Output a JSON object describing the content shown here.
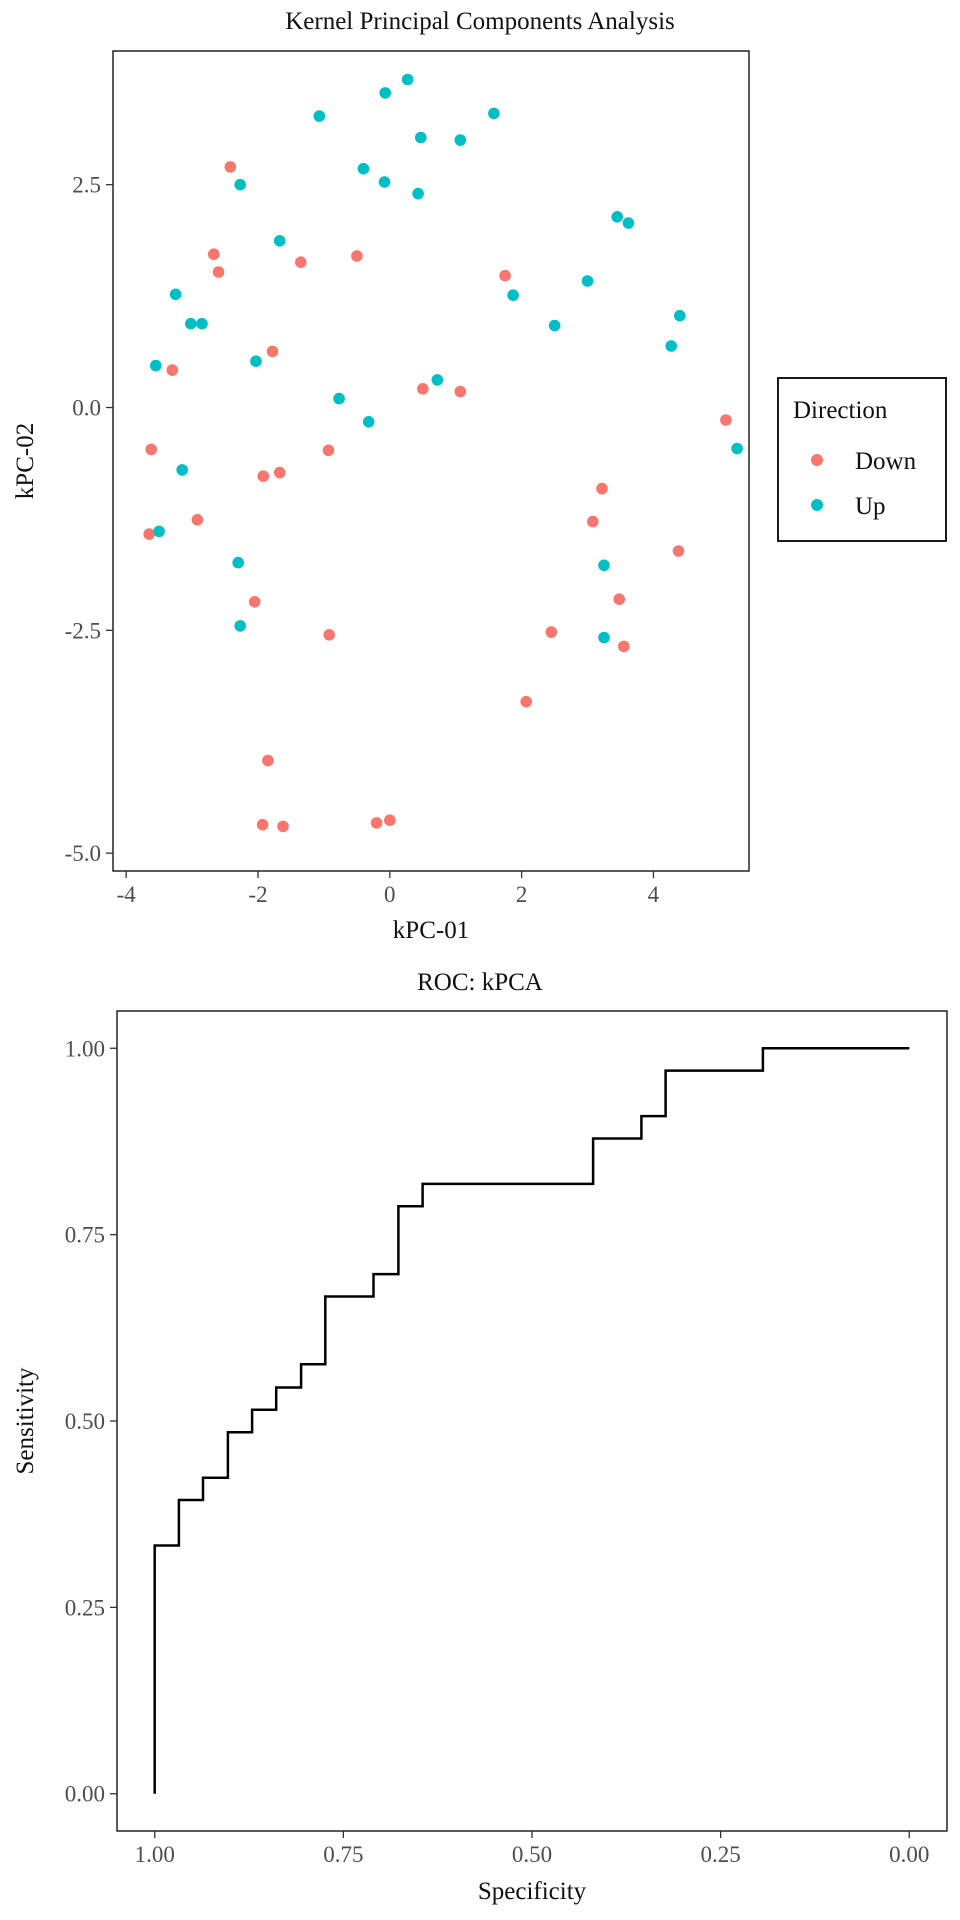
{
  "chart_data": [
    {
      "type": "scatter",
      "title": "Kernel Principal Components Analysis",
      "xlabel": "kPC-01",
      "ylabel": "kPC-02",
      "xlim": [
        -4.2,
        5.45
      ],
      "ylim": [
        -5.2,
        4.0
      ],
      "xticks": [
        -4,
        -2,
        0,
        2,
        4
      ],
      "xtick_labels": [
        "-4",
        "-2",
        "0",
        "2",
        "4"
      ],
      "yticks": [
        -5.0,
        -2.5,
        0.0,
        2.5
      ],
      "ytick_labels": [
        "-5.0",
        "-2.5",
        "0.0",
        "2.5"
      ],
      "grid": false,
      "legend": {
        "title": "Direction",
        "placement": "right",
        "entries": [
          {
            "label": "Down",
            "color": "#F8766D"
          },
          {
            "label": "Up",
            "color": "#00BFC4"
          }
        ]
      },
      "series": [
        {
          "name": "Down",
          "color": "#F8766D",
          "points": [
            [
              -2.42,
              2.7
            ],
            [
              -2.67,
              1.72
            ],
            [
              -2.6,
              1.52
            ],
            [
              -1.35,
              1.63
            ],
            [
              -0.5,
              1.7
            ],
            [
              -3.3,
              0.42
            ],
            [
              -1.78,
              0.63
            ],
            [
              1.75,
              1.48
            ],
            [
              0.5,
              0.21
            ],
            [
              1.07,
              0.18
            ],
            [
              -3.62,
              -0.47
            ],
            [
              -1.92,
              -0.77
            ],
            [
              -1.67,
              -0.73
            ],
            [
              -0.93,
              -0.48
            ],
            [
              5.1,
              -0.14
            ],
            [
              -3.65,
              -1.42
            ],
            [
              -2.92,
              -1.26
            ],
            [
              3.22,
              -0.91
            ],
            [
              3.08,
              -1.28
            ],
            [
              4.38,
              -1.61
            ],
            [
              -2.05,
              -2.18
            ],
            [
              -0.92,
              -2.55
            ],
            [
              2.45,
              -2.52
            ],
            [
              3.48,
              -2.15
            ],
            [
              3.55,
              -2.68
            ],
            [
              2.07,
              -3.3
            ],
            [
              -1.85,
              -3.96
            ],
            [
              -1.93,
              -4.68
            ],
            [
              -1.62,
              -4.7
            ],
            [
              -0.2,
              -4.66
            ],
            [
              -0.0,
              -4.63
            ]
          ]
        },
        {
          "name": "Up",
          "color": "#00BFC4",
          "points": [
            [
              -1.07,
              3.27
            ],
            [
              -0.07,
              3.53
            ],
            [
              0.27,
              3.68
            ],
            [
              1.58,
              3.3
            ],
            [
              0.47,
              3.03
            ],
            [
              1.07,
              3.0
            ],
            [
              -0.4,
              2.68
            ],
            [
              -0.08,
              2.53
            ],
            [
              -2.27,
              2.5
            ],
            [
              0.43,
              2.4
            ],
            [
              3.45,
              2.14
            ],
            [
              3.62,
              2.07
            ],
            [
              -1.67,
              1.87
            ],
            [
              -3.25,
              1.27
            ],
            [
              1.87,
              1.26
            ],
            [
              3.0,
              1.42
            ],
            [
              -3.02,
              0.94
            ],
            [
              -2.85,
              0.94
            ],
            [
              2.5,
              0.92
            ],
            [
              4.4,
              1.03
            ],
            [
              4.27,
              0.69
            ],
            [
              -3.55,
              0.47
            ],
            [
              -2.03,
              0.52
            ],
            [
              -0.77,
              0.1
            ],
            [
              0.72,
              0.31
            ],
            [
              -0.32,
              -0.16
            ],
            [
              5.27,
              -0.46
            ],
            [
              -3.15,
              -0.7
            ],
            [
              -3.5,
              -1.39
            ],
            [
              -2.3,
              -1.74
            ],
            [
              3.25,
              -1.77
            ],
            [
              -2.27,
              -2.45
            ],
            [
              3.25,
              -2.58
            ]
          ]
        }
      ]
    },
    {
      "type": "line",
      "title": "ROC: kPCA",
      "xlabel": "Specificity",
      "ylabel": "Sensitivity",
      "x_reversed": true,
      "xlim": [
        1.05,
        -0.05
      ],
      "ylim": [
        -0.05,
        1.05
      ],
      "xticks": [
        1.0,
        0.75,
        0.5,
        0.25,
        0.0
      ],
      "xtick_labels": [
        "1.00",
        "0.75",
        "0.50",
        "0.25",
        "0.00"
      ],
      "yticks": [
        0.0,
        0.25,
        0.5,
        0.75,
        1.0
      ],
      "ytick_labels": [
        "0.00",
        "0.25",
        "0.50",
        "0.75",
        "1.00"
      ],
      "grid": false,
      "series": [
        {
          "color": "#000000",
          "x": [
            1.0,
            1.0,
            0.968,
            0.968,
            0.936,
            0.936,
            0.903,
            0.903,
            0.871,
            0.871,
            0.839,
            0.839,
            0.806,
            0.806,
            0.774,
            0.774,
            0.71,
            0.71,
            0.677,
            0.677,
            0.645,
            0.645,
            0.419,
            0.419,
            0.355,
            0.355,
            0.323,
            0.323,
            0.194,
            0.194,
            0.0
          ],
          "y": [
            0.0,
            0.333,
            0.333,
            0.394,
            0.394,
            0.424,
            0.424,
            0.485,
            0.485,
            0.515,
            0.515,
            0.545,
            0.545,
            0.576,
            0.576,
            0.667,
            0.667,
            0.697,
            0.697,
            0.788,
            0.788,
            0.818,
            0.818,
            0.879,
            0.879,
            0.909,
            0.909,
            0.97,
            0.97,
            1.0,
            1.0
          ]
        }
      ]
    }
  ]
}
